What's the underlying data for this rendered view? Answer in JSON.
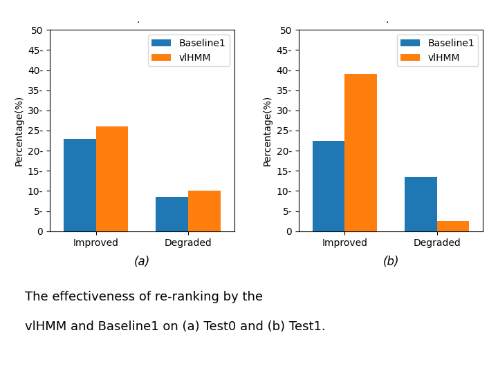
{
  "chart_data": [
    {
      "type": "bar",
      "title": "(a)",
      "categories": [
        "Improved",
        "Degraded"
      ],
      "series": [
        {
          "name": "Baseline1",
          "values": [
            23,
            8.5
          ]
        },
        {
          "name": "vlHMM",
          "values": [
            26,
            10
          ]
        }
      ],
      "y_label": "Percentage(%)",
      "ylim": [
        0,
        50
      ],
      "yticks": [
        0,
        {
          "value": 5,
          "label": "5-"
        },
        {
          "value": 10,
          "label": "10-"
        },
        {
          "value": 15,
          "label": "15-"
        },
        {
          "value": 20,
          "label": "20-"
        },
        {
          "value": 25,
          "label": "25-"
        },
        {
          "value": 30,
          "label": "30-"
        },
        {
          "value": 35,
          "label": "35-"
        },
        {
          "value": 40,
          "label": "40-"
        },
        {
          "value": 45,
          "label": "45-"
        },
        50
      ],
      "legend": "upper right",
      "annotations": [
        "·"
      ]
    },
    {
      "type": "bar",
      "title": "(b)",
      "categories": [
        "Improved",
        "Degraded"
      ],
      "series": [
        {
          "name": "Baseline1",
          "values": [
            22.5,
            13.5
          ]
        },
        {
          "name": "vlHMM",
          "values": [
            39,
            2.5
          ]
        }
      ],
      "y_label": "Percentage(%)",
      "ylim": [
        0,
        50
      ],
      "yticks": [
        0,
        {
          "value": 5,
          "label": "5-"
        },
        {
          "value": 10,
          "label": "10-"
        },
        {
          "value": 15,
          "label": "15-"
        },
        {
          "value": 20,
          "label": "20-"
        },
        {
          "value": 25,
          "label": "25-"
        },
        {
          "value": 30,
          "label": "30-"
        },
        {
          "value": 35,
          "label": "35-"
        },
        {
          "value": 40,
          "label": "40-"
        },
        {
          "value": 45,
          "label": "45-"
        },
        50
      ],
      "legend": "upper right",
      "annotations": [
        "·"
      ]
    }
  ],
  "caption": [
    "The effectiveness of re-ranking by the",
    "vlHMM and Baseline1 on (a) Test0 and (b) Test1."
  ]
}
